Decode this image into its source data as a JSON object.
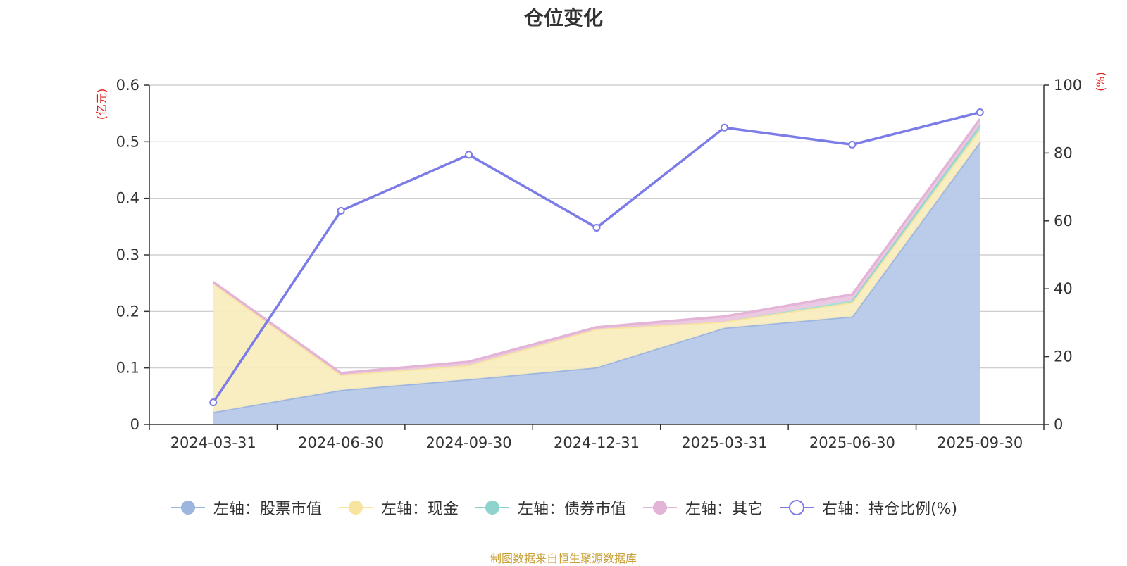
{
  "title": "仓位变化",
  "source_note": "制图数据来自恒生聚源数据库",
  "left_unit": "(亿元)",
  "right_unit": "(%)",
  "chart_data": {
    "type": "area",
    "title": "仓位变化",
    "categories": [
      "2024-03-31",
      "2024-06-30",
      "2024-09-30",
      "2024-12-31",
      "2025-03-31",
      "2025-06-30",
      "2025-09-30"
    ],
    "left_axis": {
      "unit": "(亿元)",
      "range": [
        0,
        0.6
      ],
      "ticks": [
        "0",
        "0.1",
        "0.2",
        "0.3",
        "0.4",
        "0.5",
        "0.6"
      ]
    },
    "right_axis": {
      "unit": "(%)",
      "range": [
        0,
        100
      ],
      "ticks": [
        "0",
        "20",
        "40",
        "60",
        "80",
        "100"
      ]
    },
    "stacked": true,
    "grid": true,
    "legend_position": "bottom",
    "series": [
      {
        "name": "左轴：股票市值",
        "axis": "left",
        "type": "area",
        "color": "#9db6e0",
        "fill": "#b6c9e8",
        "values": [
          0.022,
          0.061,
          0.08,
          0.101,
          0.171,
          0.191,
          0.5
        ]
      },
      {
        "name": "左轴：现金",
        "axis": "left",
        "type": "area",
        "color": "#f7e4a0",
        "fill": "#f9ecbf",
        "values": [
          0.228,
          0.027,
          0.025,
          0.068,
          0.011,
          0.025,
          0.022
        ]
      },
      {
        "name": "左轴：债券市值",
        "axis": "left",
        "type": "area",
        "color": "#8fd3cf",
        "fill": "#a8ddd6",
        "values": [
          0,
          0,
          0,
          0,
          0,
          0.004,
          0.008
        ]
      },
      {
        "name": "左轴：其它",
        "axis": "left",
        "type": "area",
        "color": "#e3b4d6",
        "fill": "#ebc6e0",
        "values": [
          0.002,
          0.003,
          0.006,
          0.003,
          0.009,
          0.01,
          0.01
        ]
      },
      {
        "name": "右轴：持仓比例(%)",
        "axis": "right",
        "type": "line",
        "color": "#7b7ce8",
        "values": [
          6.5,
          63,
          79.5,
          58,
          87.5,
          82.5,
          92
        ]
      }
    ]
  }
}
